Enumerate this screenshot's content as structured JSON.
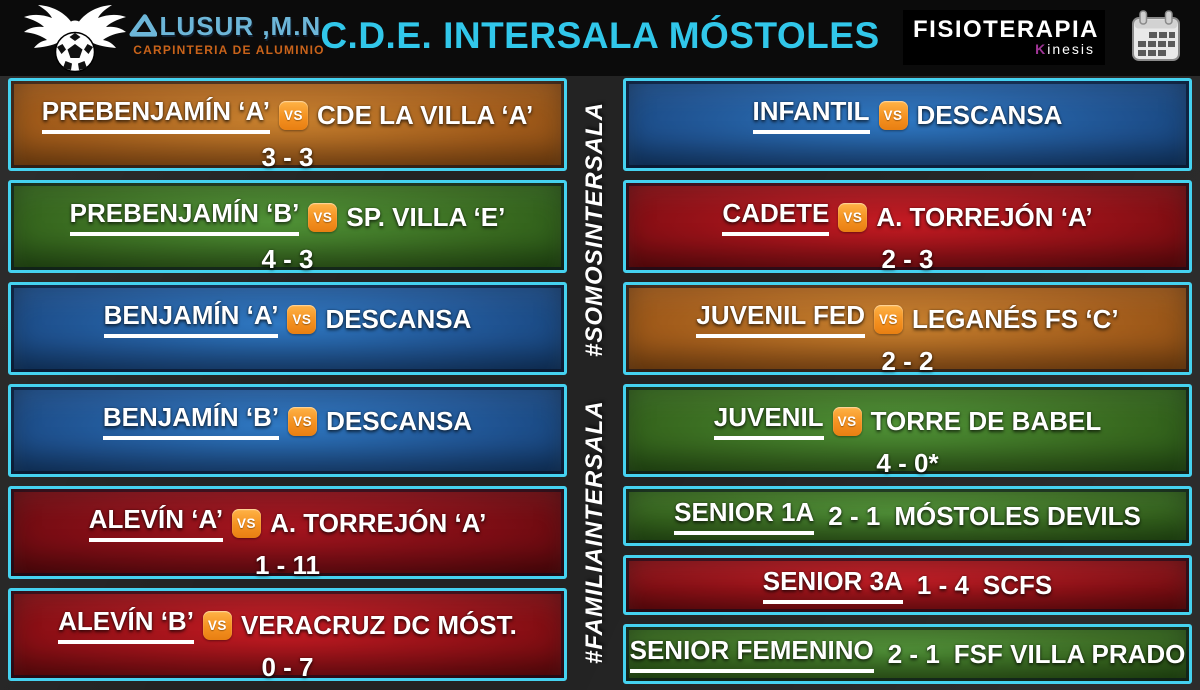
{
  "header": {
    "title": "C.D.E. INTERSALA MÓSTOLES",
    "sponsor_left": {
      "brand_text": "LUSUR ,M.N.",
      "tagline": "CARPINTERIA DE ALUMINIO"
    },
    "sponsor_right": {
      "name": "FISIOTERAPIA",
      "sub_initial": "K",
      "sub_rest": "inesis"
    }
  },
  "hashtags": {
    "top": "#SOMOSINTERSALA",
    "bottom": "#FAMILIAINTERSALA"
  },
  "vs_label": "VS",
  "colors": {
    "accent_cyan": "#31c7ea",
    "card_border": "#45d2f0",
    "vs_badge_orange": "#f49120",
    "alusur_blue": "#6db6d8",
    "alusur_orange": "#c9631a",
    "kinesis_magenta": "#a03596"
  },
  "left_matches": [
    {
      "home": "PREBENJAMÍN ‘A’",
      "away": "CDE LA VILLA ‘A’",
      "score": "3 - 3",
      "theme": "orange"
    },
    {
      "home": "PREBENJAMÍN ‘B’",
      "away": "SP. VILLA ‘E’",
      "score": "4 - 3",
      "theme": "green"
    },
    {
      "home": "BENJAMÍN ‘A’",
      "away": "DESCANSA",
      "score": "",
      "theme": "blue"
    },
    {
      "home": "BENJAMÍN ‘B’",
      "away": "DESCANSA",
      "score": "",
      "theme": "blue"
    },
    {
      "home": "ALEVÍN ‘A’",
      "away": "A. TORREJÓN ‘A’",
      "score": "1 - 11",
      "theme": "darkred"
    },
    {
      "home": "ALEVÍN ‘B’",
      "away": "VERACRUZ DC MÓST.",
      "score": "0 - 7",
      "theme": "red"
    }
  ],
  "right_matches": [
    {
      "home": "INFANTIL",
      "away": "DESCANSA",
      "score": "",
      "theme": "blue"
    },
    {
      "home": "CADETE",
      "away": "A. TORREJÓN ‘A’",
      "score": "2 - 3",
      "theme": "red"
    },
    {
      "home": "JUVENIL FED",
      "away": "LEGANÉS FS ‘C’",
      "score": "2 - 2",
      "theme": "orange"
    },
    {
      "home": "JUVENIL",
      "away": "TORRE DE BABEL",
      "score": "4 - 0*",
      "theme": "green"
    }
  ],
  "senior_matches": [
    {
      "team": "SENIOR 1A",
      "score": "2 - 1",
      "opponent": "MÓSTOLES DEVILS",
      "theme": "green"
    },
    {
      "team": "SENIOR 3A",
      "score": "1 - 4",
      "opponent": "SCFS",
      "theme": "red"
    },
    {
      "team": "SENIOR FEMENINO",
      "score": "2 - 1",
      "opponent": "FSF VILLA PRADO",
      "theme": "green"
    }
  ]
}
